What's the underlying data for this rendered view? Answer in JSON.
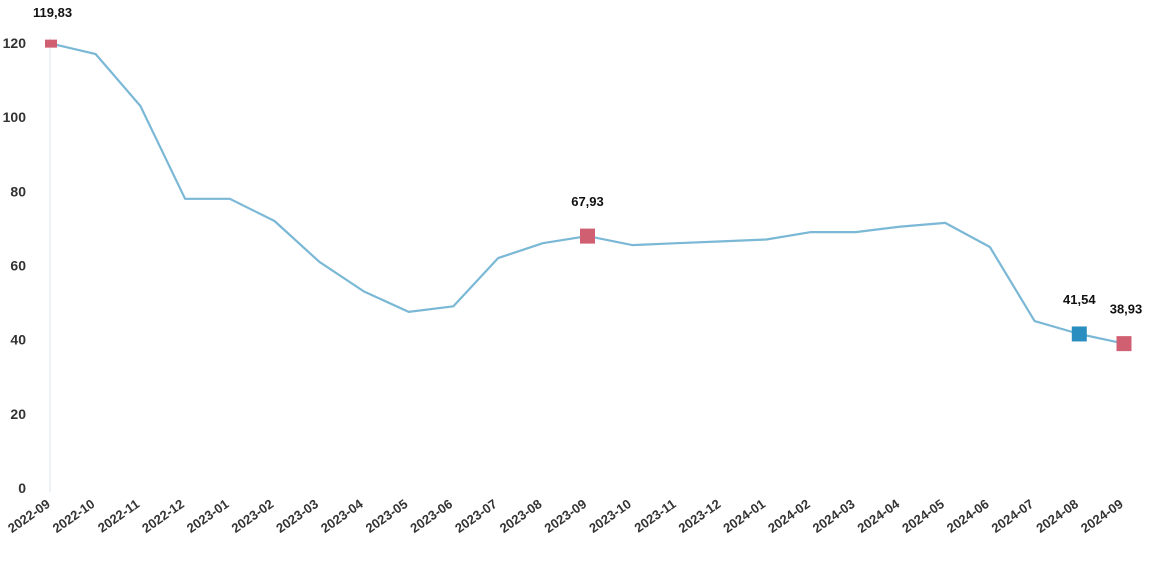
{
  "chart_data": {
    "type": "line",
    "title": "",
    "xlabel": "",
    "ylabel": "",
    "ylim": [
      0,
      120
    ],
    "yticks": [
      "0",
      "20",
      "40",
      "60",
      "80",
      "100",
      "120"
    ],
    "grid": false,
    "legend": "none",
    "line_color": "#7ab8d6",
    "categories": [
      "2022-09",
      "2022-10",
      "2022-11",
      "2022-12",
      "2023-01",
      "2023-02",
      "2023-03",
      "2023-04",
      "2023-05",
      "2023-06",
      "2023-07",
      "2023-08",
      "2023-09",
      "2023-10",
      "2023-11",
      "2023-12",
      "2024-01",
      "2024-02",
      "2024-03",
      "2024-04",
      "2024-05",
      "2024-06",
      "2024-07",
      "2024-08",
      "2024-09"
    ],
    "series": [
      {
        "values": [
          119.83,
          117,
          103,
          78,
          78,
          72,
          61,
          53,
          47.5,
          49,
          62,
          66,
          67.93,
          65.5,
          66,
          66.5,
          67,
          69,
          69,
          70.5,
          71.5,
          65,
          45,
          41.54,
          38.93
        ]
      }
    ],
    "annotations": [
      {
        "index": 0,
        "label": "119,83",
        "color": "#d05f72"
      },
      {
        "index": 12,
        "label": "67,93",
        "color": "#d05f72"
      },
      {
        "index": 23,
        "label": "41,54",
        "color": "#2b8ec0"
      },
      {
        "index": 24,
        "label": "38,93",
        "color": "#d05f72"
      }
    ]
  }
}
